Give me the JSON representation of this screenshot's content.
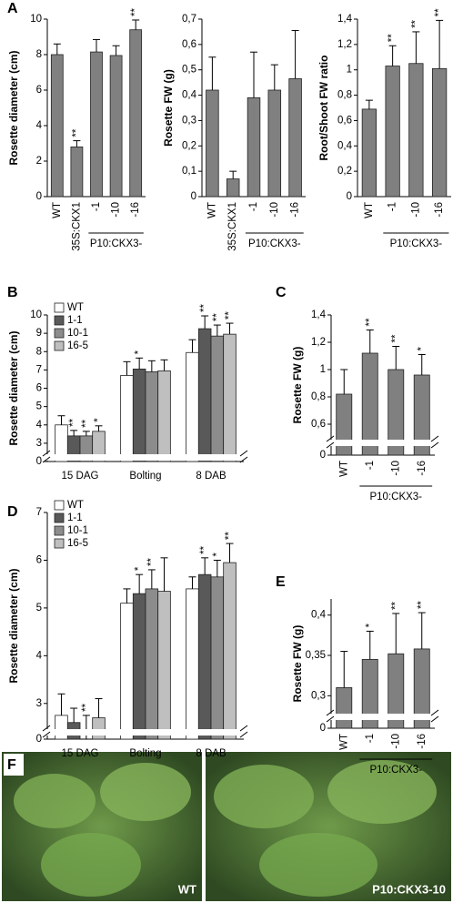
{
  "chart_data": [
    {
      "type": "bar",
      "panel": "A",
      "ylabel": "Rosette diameter (cm)",
      "categories": [
        "WT",
        "35S:CKX1",
        "-1",
        "-10",
        "-16"
      ],
      "group_label": "P10:CKX3-",
      "series": [
        {
          "color": "#808080",
          "values": [
            8.0,
            2.8,
            8.15,
            7.95,
            9.4
          ],
          "errors": [
            0.6,
            0.35,
            0.7,
            0.55,
            0.55
          ],
          "significance": [
            null,
            "**",
            null,
            null,
            "**"
          ]
        }
      ],
      "ylim": [
        0,
        10
      ],
      "yticks": [
        0,
        2,
        4,
        6,
        8,
        10
      ]
    },
    {
      "type": "bar",
      "ylabel": "Rosette FW (g)",
      "categories": [
        "WT",
        "35S:CKX1",
        "-1",
        "-10",
        "-16"
      ],
      "group_label": "P10:CKX3-",
      "series": [
        {
          "color": "#808080",
          "values": [
            0.42,
            0.07,
            0.39,
            0.42,
            0.465
          ],
          "errors": [
            0.13,
            0.03,
            0.18,
            0.1,
            0.19
          ],
          "significance": [
            null,
            null,
            null,
            null,
            null
          ]
        }
      ],
      "ylim": [
        0,
        0.7
      ],
      "yticks": [
        0,
        {
          "value": 0.1,
          "label": "0,1"
        },
        {
          "value": 0.2,
          "label": "0,2"
        },
        {
          "value": 0.3,
          "label": "0,3"
        },
        {
          "value": 0.4,
          "label": "0,4"
        },
        {
          "value": 0.5,
          "label": "0,5"
        },
        {
          "value": 0.6,
          "label": "0,6"
        },
        {
          "value": 0.7,
          "label": "0,7"
        }
      ]
    },
    {
      "type": "bar",
      "ylabel": "Root/Shoot FW ratio",
      "categories": [
        "WT",
        "-1",
        "-10",
        "-16"
      ],
      "group_label": "P10:CKX3-",
      "series": [
        {
          "color": "#808080",
          "values": [
            0.69,
            1.03,
            1.05,
            1.01
          ],
          "errors": [
            0.07,
            0.16,
            0.25,
            0.38
          ],
          "significance": [
            null,
            "**",
            "**",
            "**"
          ]
        }
      ],
      "ylim": [
        0,
        1.4
      ],
      "yticks": [
        0,
        {
          "value": 0.2,
          "label": "0,2"
        },
        {
          "value": 0.4,
          "label": "0,4"
        },
        {
          "value": 0.6,
          "label": "0,6"
        },
        {
          "value": 0.8,
          "label": "0,8"
        },
        1,
        {
          "value": 1.2,
          "label": "1,2"
        },
        {
          "value": 1.4,
          "label": "1,4"
        }
      ]
    },
    {
      "type": "bar",
      "panel": "B",
      "ylabel": "Rosette diameter (cm)",
      "categories": [
        "15 DAG",
        "Bolting",
        "8 DAB"
      ],
      "series": [
        {
          "name": "WT",
          "color": "#ffffff",
          "values": [
            4.0,
            6.7,
            7.95
          ],
          "errors": [
            0.5,
            0.75,
            0.7
          ],
          "significance": [
            null,
            null,
            null
          ]
        },
        {
          "name": "1-1",
          "color": "#595959",
          "values": [
            3.4,
            7.05,
            9.25
          ],
          "errors": [
            0.3,
            0.6,
            0.7
          ],
          "significance": [
            "**",
            "*",
            "**"
          ]
        },
        {
          "name": "10-1",
          "color": "#8c8c8c",
          "values": [
            3.4,
            6.9,
            8.85
          ],
          "errors": [
            0.25,
            0.6,
            0.6
          ],
          "significance": [
            "**",
            null,
            "**"
          ]
        },
        {
          "name": "16-5",
          "color": "#bfbfbf",
          "values": [
            3.65,
            6.95,
            8.95
          ],
          "errors": [
            0.3,
            0.6,
            0.6
          ],
          "significance": [
            "*",
            null,
            "**"
          ]
        }
      ],
      "ylim": [
        2.5,
        10
      ],
      "axis_break": true,
      "yticks": [
        0,
        3,
        4,
        5,
        6,
        7,
        8,
        9,
        10
      ]
    },
    {
      "type": "bar",
      "panel": "C",
      "ylabel": "Rosette FW (g)",
      "categories": [
        "WT",
        "-1",
        "-10",
        "-16"
      ],
      "group_label": "P10:CKX3-",
      "series": [
        {
          "color": "#808080",
          "values": [
            0.82,
            1.12,
            1.0,
            0.96
          ],
          "errors": [
            0.18,
            0.17,
            0.17,
            0.15
          ],
          "significance": [
            null,
            "**",
            "**",
            "*"
          ]
        }
      ],
      "ylim": [
        0.5,
        1.4
      ],
      "axis_break": true,
      "yticks": [
        0,
        {
          "value": 0.6,
          "label": "0,6"
        },
        {
          "value": 0.8,
          "label": "0,8"
        },
        1,
        {
          "value": 1.2,
          "label": "1,2"
        },
        {
          "value": 1.4,
          "label": "1,4"
        }
      ]
    },
    {
      "type": "bar",
      "panel": "D",
      "ylabel": "Rosette diameter (cm)",
      "categories": [
        "15 DAG",
        "Bolting",
        "8 DAB"
      ],
      "series": [
        {
          "name": "WT",
          "color": "#ffffff",
          "values": [
            2.75,
            5.1,
            5.4
          ],
          "errors": [
            0.45,
            0.3,
            0.25
          ],
          "significance": [
            null,
            null,
            null
          ]
        },
        {
          "name": "1-1",
          "color": "#595959",
          "values": [
            2.6,
            5.3,
            5.7
          ],
          "errors": [
            0.3,
            0.4,
            0.35
          ],
          "significance": [
            null,
            "*",
            "**"
          ]
        },
        {
          "name": "10-1",
          "color": "#8c8c8c",
          "values": [
            2.45,
            5.4,
            5.65
          ],
          "errors": [
            0.3,
            0.4,
            0.35
          ],
          "significance": [
            "**",
            "**",
            "*"
          ]
        },
        {
          "name": "16-5",
          "color": "#bfbfbf",
          "values": [
            2.7,
            5.35,
            5.95
          ],
          "errors": [
            0.4,
            0.7,
            0.4
          ],
          "significance": [
            null,
            null,
            "**"
          ]
        }
      ],
      "ylim": [
        2.5,
        7
      ],
      "axis_break": true,
      "yticks": [
        0,
        3,
        4,
        5,
        6,
        7
      ]
    },
    {
      "type": "bar",
      "panel": "E",
      "ylabel": "Rosette FW (g)",
      "categories": [
        "WT",
        "-1",
        "-10",
        "-16"
      ],
      "group_label": "P10:CKX3-",
      "series": [
        {
          "color": "#808080",
          "values": [
            0.31,
            0.345,
            0.352,
            0.358
          ],
          "errors": [
            0.045,
            0.035,
            0.05,
            0.045
          ],
          "significance": [
            null,
            "*",
            "**",
            "**"
          ]
        }
      ],
      "ylim": [
        0.28,
        0.42
      ],
      "axis_break": true,
      "yticks": [
        0,
        {
          "value": 0.3,
          "label": "0,3"
        },
        {
          "value": 0.35,
          "label": "0,35"
        },
        {
          "value": 0.4,
          "label": "0,4"
        }
      ]
    }
  ],
  "photos": {
    "panel": "F",
    "labels": [
      "WT",
      "P10:CKX3-10"
    ]
  }
}
